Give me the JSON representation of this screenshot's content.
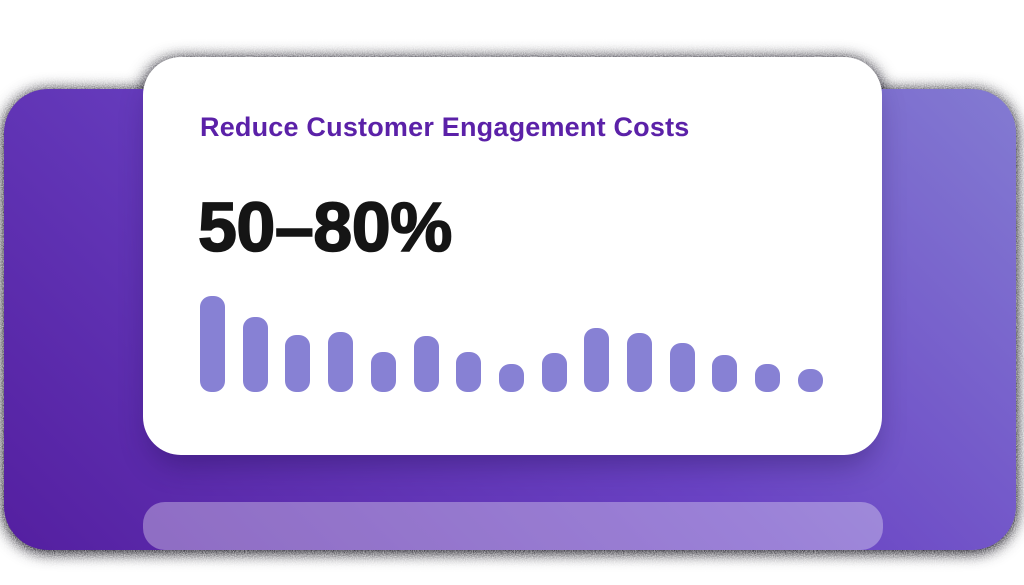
{
  "card": {
    "title": "Reduce Customer Engagement Costs",
    "stat_value": "50–80%"
  },
  "chart_data": {
    "type": "bar",
    "title": "",
    "xlabel": "",
    "ylabel": "",
    "values": [
      100,
      78,
      59,
      63,
      42,
      58,
      42,
      29,
      41,
      67,
      61,
      51,
      39,
      29,
      24
    ],
    "ylim": [
      0,
      100
    ],
    "grid": false,
    "legend": "none",
    "axes_visible": false,
    "bar_color": "#8781d4",
    "bar_corner_radius": "rounded",
    "note": "decorative unlabeled bar chart, 15 bars, values relative to tallest bar = 100"
  },
  "colors": {
    "title_text": "#5b21a8",
    "stat_text": "#151515",
    "card_bg": "#ffffff",
    "panel_top": "#837bd2",
    "panel_mid": "#6a43c4",
    "panel_bottom": "#541fa0",
    "bar_fill": "#8781d4",
    "reflection_overlay": "rgba(255,255,255,0.33)",
    "page_bg": "#ffffff"
  }
}
